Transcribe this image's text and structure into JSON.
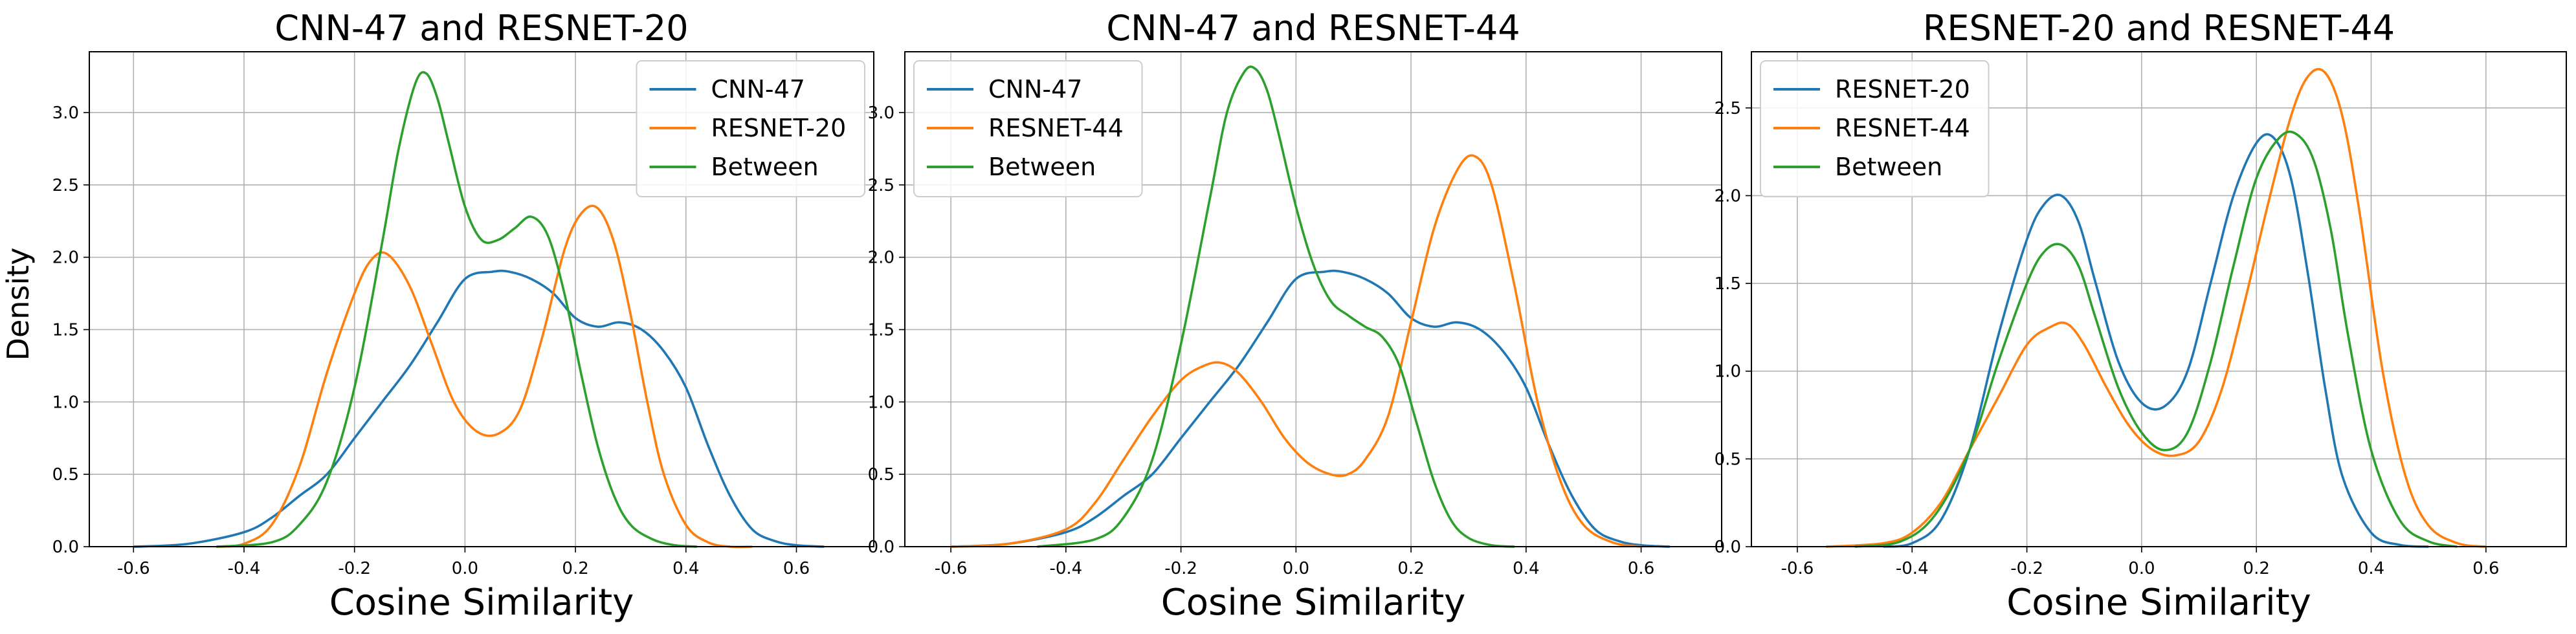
{
  "figure": {
    "shared_xlabel": "Cosine Similarity",
    "shared_ylabel": "Density"
  },
  "chart_data": [
    {
      "type": "line",
      "title": "CNN-47 and RESNET-20",
      "xlabel": "Cosine Similarity",
      "ylabel": "Density",
      "xlim": [
        -0.68,
        0.74
      ],
      "ylim": [
        0,
        3.42
      ],
      "xticks": [
        "-0.6",
        "-0.4",
        "-0.2",
        "0.0",
        "0.2",
        "0.4",
        "0.6"
      ],
      "yticks": [
        "0.0",
        "0.5",
        "1.0",
        "1.5",
        "2.0",
        "2.5",
        "3.0"
      ],
      "grid": true,
      "legend_position": "top-right",
      "series": [
        {
          "name": "CNN-47",
          "color": "#1f77b4",
          "x": [
            -0.6,
            -0.5,
            -0.4,
            -0.35,
            -0.3,
            -0.25,
            -0.2,
            -0.15,
            -0.1,
            -0.05,
            0.0,
            0.05,
            0.08,
            0.12,
            0.16,
            0.2,
            0.24,
            0.28,
            0.32,
            0.36,
            0.4,
            0.44,
            0.48,
            0.52,
            0.56,
            0.6,
            0.65
          ],
          "y": [
            0.0,
            0.02,
            0.1,
            0.2,
            0.35,
            0.5,
            0.75,
            1.0,
            1.25,
            1.55,
            1.85,
            1.9,
            1.9,
            1.85,
            1.75,
            1.58,
            1.52,
            1.55,
            1.5,
            1.35,
            1.1,
            0.7,
            0.35,
            0.12,
            0.04,
            0.01,
            0.0
          ]
        },
        {
          "name": "RESNET-20",
          "color": "#ff7f0e",
          "x": [
            -0.45,
            -0.4,
            -0.35,
            -0.3,
            -0.25,
            -0.2,
            -0.17,
            -0.14,
            -0.1,
            -0.06,
            -0.02,
            0.02,
            0.06,
            0.1,
            0.14,
            0.18,
            0.21,
            0.24,
            0.27,
            0.3,
            0.33,
            0.36,
            0.4,
            0.44,
            0.48,
            0.52
          ],
          "y": [
            0.0,
            0.02,
            0.15,
            0.55,
            1.2,
            1.75,
            1.98,
            2.02,
            1.8,
            1.4,
            1.0,
            0.8,
            0.78,
            0.95,
            1.45,
            2.05,
            2.3,
            2.34,
            2.1,
            1.6,
            1.0,
            0.5,
            0.15,
            0.03,
            0.0,
            0.0
          ]
        },
        {
          "name": "Between",
          "color": "#2ca02c",
          "x": [
            -0.45,
            -0.35,
            -0.3,
            -0.25,
            -0.2,
            -0.15,
            -0.12,
            -0.09,
            -0.07,
            -0.05,
            -0.03,
            0.0,
            0.03,
            0.06,
            0.09,
            0.12,
            0.15,
            0.18,
            0.21,
            0.24,
            0.27,
            0.3,
            0.34,
            0.38,
            0.42
          ],
          "y": [
            0.0,
            0.03,
            0.15,
            0.45,
            1.1,
            2.1,
            2.75,
            3.2,
            3.27,
            3.1,
            2.8,
            2.35,
            2.12,
            2.12,
            2.2,
            2.28,
            2.15,
            1.75,
            1.2,
            0.7,
            0.35,
            0.15,
            0.05,
            0.01,
            0.0
          ]
        }
      ]
    },
    {
      "type": "line",
      "title": "CNN-47 and RESNET-44",
      "xlabel": "Cosine Similarity",
      "ylabel": "",
      "xlim": [
        -0.68,
        0.74
      ],
      "ylim": [
        0,
        3.42
      ],
      "xticks": [
        "-0.6",
        "-0.4",
        "-0.2",
        "0.0",
        "0.2",
        "0.4",
        "0.6"
      ],
      "yticks": [
        "0.0",
        "0.5",
        "1.0",
        "1.5",
        "2.0",
        "2.5",
        "3.0"
      ],
      "grid": true,
      "legend_position": "top-left",
      "series": [
        {
          "name": "CNN-47",
          "color": "#1f77b4",
          "x": [
            -0.6,
            -0.5,
            -0.4,
            -0.35,
            -0.3,
            -0.25,
            -0.2,
            -0.15,
            -0.1,
            -0.05,
            0.0,
            0.05,
            0.08,
            0.12,
            0.16,
            0.2,
            0.24,
            0.28,
            0.32,
            0.36,
            0.4,
            0.44,
            0.48,
            0.52,
            0.56,
            0.6,
            0.65
          ],
          "y": [
            0.0,
            0.02,
            0.1,
            0.2,
            0.35,
            0.5,
            0.75,
            1.0,
            1.25,
            1.55,
            1.85,
            1.9,
            1.9,
            1.85,
            1.75,
            1.58,
            1.52,
            1.55,
            1.5,
            1.35,
            1.1,
            0.7,
            0.35,
            0.12,
            0.04,
            0.01,
            0.0
          ]
        },
        {
          "name": "RESNET-44",
          "color": "#ff7f0e",
          "x": [
            -0.6,
            -0.5,
            -0.4,
            -0.35,
            -0.3,
            -0.25,
            -0.2,
            -0.16,
            -0.13,
            -0.1,
            -0.06,
            -0.02,
            0.02,
            0.06,
            0.09,
            0.12,
            0.16,
            0.2,
            0.24,
            0.28,
            0.31,
            0.34,
            0.38,
            0.42,
            0.46,
            0.5,
            0.55,
            0.6
          ],
          "y": [
            0.0,
            0.02,
            0.12,
            0.3,
            0.6,
            0.9,
            1.15,
            1.25,
            1.27,
            1.2,
            1.0,
            0.75,
            0.58,
            0.5,
            0.5,
            0.6,
            0.9,
            1.55,
            2.2,
            2.6,
            2.7,
            2.5,
            1.8,
            1.0,
            0.45,
            0.15,
            0.03,
            0.0
          ]
        },
        {
          "name": "Between",
          "color": "#2ca02c",
          "x": [
            -0.45,
            -0.35,
            -0.3,
            -0.25,
            -0.2,
            -0.15,
            -0.12,
            -0.09,
            -0.07,
            -0.05,
            -0.03,
            0.0,
            0.03,
            0.06,
            0.09,
            0.12,
            0.15,
            0.18,
            0.21,
            0.24,
            0.27,
            0.3,
            0.34,
            0.38
          ],
          "y": [
            0.0,
            0.05,
            0.2,
            0.6,
            1.4,
            2.4,
            3.0,
            3.28,
            3.3,
            3.15,
            2.85,
            2.35,
            1.95,
            1.7,
            1.6,
            1.52,
            1.45,
            1.25,
            0.85,
            0.45,
            0.18,
            0.06,
            0.01,
            0.0
          ]
        }
      ]
    },
    {
      "type": "line",
      "title": "RESNET-20 and RESNET-44",
      "xlabel": "Cosine Similarity",
      "ylabel": "",
      "xlim": [
        -0.68,
        0.74
      ],
      "ylim": [
        0,
        2.82
      ],
      "xticks": [
        "-0.6",
        "-0.4",
        "-0.2",
        "0.0",
        "0.2",
        "0.4",
        "0.6"
      ],
      "yticks": [
        "0.0",
        "0.5",
        "1.0",
        "1.5",
        "2.0",
        "2.5"
      ],
      "grid": true,
      "legend_position": "top-left",
      "series": [
        {
          "name": "RESNET-20",
          "color": "#1f77b4",
          "x": [
            -0.45,
            -0.4,
            -0.35,
            -0.3,
            -0.25,
            -0.2,
            -0.17,
            -0.14,
            -0.11,
            -0.08,
            -0.04,
            0.0,
            0.04,
            0.08,
            0.12,
            0.16,
            0.2,
            0.23,
            0.26,
            0.29,
            0.32,
            0.35,
            0.4,
            0.45,
            0.5
          ],
          "y": [
            0.0,
            0.02,
            0.15,
            0.55,
            1.2,
            1.75,
            1.95,
            2.0,
            1.85,
            1.5,
            1.05,
            0.82,
            0.8,
            1.0,
            1.5,
            2.0,
            2.3,
            2.33,
            2.1,
            1.55,
            0.9,
            0.4,
            0.08,
            0.01,
            0.0
          ]
        },
        {
          "name": "RESNET-44",
          "color": "#ff7f0e",
          "x": [
            -0.55,
            -0.45,
            -0.4,
            -0.35,
            -0.3,
            -0.25,
            -0.2,
            -0.16,
            -0.13,
            -0.1,
            -0.06,
            -0.02,
            0.02,
            0.06,
            0.1,
            0.14,
            0.18,
            0.22,
            0.26,
            0.29,
            0.32,
            0.35,
            0.38,
            0.42,
            0.46,
            0.5,
            0.55,
            0.6
          ],
          "y": [
            0.0,
            0.02,
            0.08,
            0.25,
            0.55,
            0.85,
            1.15,
            1.25,
            1.27,
            1.15,
            0.9,
            0.68,
            0.55,
            0.52,
            0.6,
            0.9,
            1.4,
            1.95,
            2.45,
            2.68,
            2.7,
            2.45,
            1.9,
            1.0,
            0.4,
            0.12,
            0.02,
            0.0
          ]
        },
        {
          "name": "Between",
          "color": "#2ca02c",
          "x": [
            -0.5,
            -0.42,
            -0.36,
            -0.3,
            -0.25,
            -0.2,
            -0.17,
            -0.14,
            -0.11,
            -0.08,
            -0.04,
            0.0,
            0.04,
            0.08,
            0.12,
            0.16,
            0.2,
            0.24,
            0.27,
            0.3,
            0.33,
            0.36,
            0.4,
            0.45,
            0.5,
            0.55
          ],
          "y": [
            0.0,
            0.03,
            0.18,
            0.55,
            1.05,
            1.5,
            1.68,
            1.72,
            1.6,
            1.3,
            0.9,
            0.65,
            0.55,
            0.65,
            1.05,
            1.6,
            2.1,
            2.33,
            2.35,
            2.2,
            1.8,
            1.2,
            0.55,
            0.15,
            0.03,
            0.0
          ]
        }
      ]
    }
  ]
}
